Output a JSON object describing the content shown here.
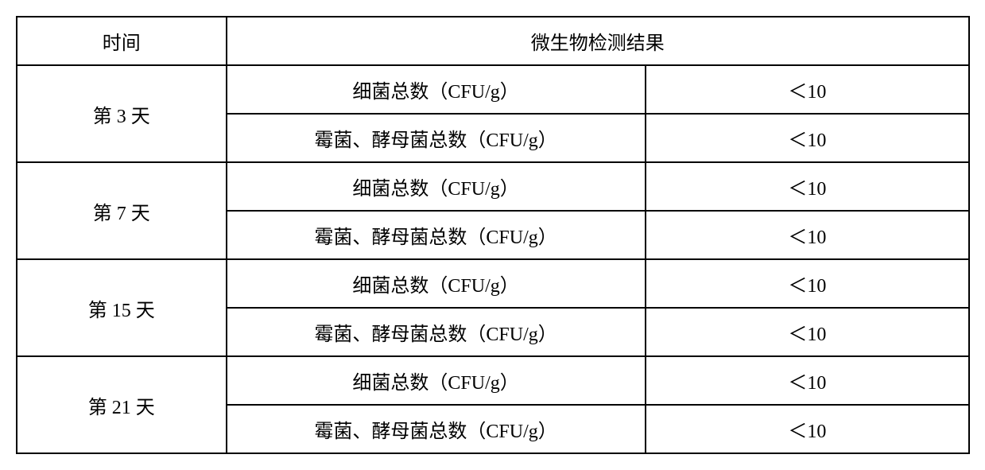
{
  "table": {
    "header": {
      "time": "时间",
      "result": "微生物检测结果"
    },
    "col_widths_pct": [
      22,
      44,
      34
    ],
    "border_color": "#000000",
    "background_color": "#ffffff",
    "font_size_pt": 24,
    "rows": [
      {
        "time": "第 3 天",
        "measurements": [
          {
            "param": "细菌总数（CFU/g）",
            "value": "＜10"
          },
          {
            "param": "霉菌、酵母菌总数（CFU/g）",
            "value": "＜10"
          }
        ]
      },
      {
        "time": "第 7 天",
        "measurements": [
          {
            "param": "细菌总数（CFU/g）",
            "value": "＜10"
          },
          {
            "param": "霉菌、酵母菌总数（CFU/g）",
            "value": "＜10"
          }
        ]
      },
      {
        "time": "第 15 天",
        "measurements": [
          {
            "param": "细菌总数（CFU/g）",
            "value": "＜10"
          },
          {
            "param": "霉菌、酵母菌总数（CFU/g）",
            "value": "＜10"
          }
        ]
      },
      {
        "time": "第 21 天",
        "measurements": [
          {
            "param": "细菌总数（CFU/g）",
            "value": "＜10"
          },
          {
            "param": "霉菌、酵母菌总数（CFU/g）",
            "value": "＜10"
          }
        ]
      }
    ]
  }
}
